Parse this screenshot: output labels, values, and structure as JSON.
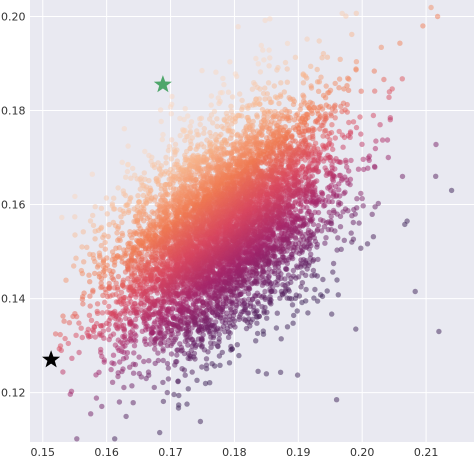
{
  "chart_data": {
    "type": "scatter",
    "title": "",
    "xlabel": "",
    "ylabel": "",
    "xlim": [
      0.148,
      0.2175
    ],
    "ylim": [
      0.1095,
      0.2035
    ],
    "xticks": [
      0.15,
      0.16,
      0.17,
      0.18,
      0.19,
      0.2,
      0.21
    ],
    "xtick_labels": [
      "0.15",
      "0.16",
      "0.17",
      "0.18",
      "0.19",
      "0.20",
      "0.21"
    ],
    "yticks": [
      0.12,
      0.14,
      0.16,
      0.18,
      0.2
    ],
    "ytick_labels": [
      "0.12",
      "0.14",
      "0.16",
      "0.18",
      "0.20"
    ],
    "grid": true,
    "background_color": "#e9e9f1",
    "grid_color": "#ffffff",
    "cloud": {
      "n_points": 7000,
      "x_mean": 0.178,
      "y_mean": 0.155,
      "x_std": 0.0085,
      "y_std": 0.0125,
      "correlation": 0.5,
      "x_range": [
        0.1525,
        0.2175
      ],
      "y_range": [
        0.1095,
        0.2035
      ],
      "colormap": [
        "#3c1f55",
        "#6b1f66",
        "#a4256a",
        "#d8465f",
        "#f07a52",
        "#f7b38a",
        "#f9d8c2"
      ],
      "marker": "circle",
      "alpha": 0.5
    },
    "sample_points": [
      {
        "x": 0.2095,
        "y": 0.198
      },
      {
        "x": 0.2118,
        "y": 0.2
      },
      {
        "x": 0.2115,
        "y": 0.166
      },
      {
        "x": 0.214,
        "y": 0.163
      },
      {
        "x": 0.212,
        "y": 0.133
      },
      {
        "x": 0.2083,
        "y": 0.1415
      },
      {
        "x": 0.199,
        "y": 0.1335
      },
      {
        "x": 0.152,
        "y": 0.1325
      },
      {
        "x": 0.1535,
        "y": 0.1315
      },
      {
        "x": 0.1575,
        "y": 0.1155
      },
      {
        "x": 0.162,
        "y": 0.118
      },
      {
        "x": 0.196,
        "y": 0.1185
      },
      {
        "x": 0.185,
        "y": 0.124
      }
    ],
    "markers": [
      {
        "x": 0.1513,
        "y": 0.127,
        "shape": "star",
        "color": "#000000"
      },
      {
        "x": 0.1688,
        "y": 0.1855,
        "shape": "star",
        "color": "#4ea66a"
      }
    ]
  }
}
